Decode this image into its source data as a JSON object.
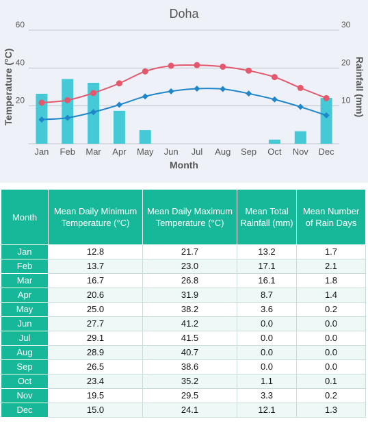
{
  "chart_data": {
    "type": "bar+line",
    "title": "Doha",
    "xlabel": "Month",
    "ylabel_left": "Temperature (°C)",
    "ylabel_right": "Rainfall (mm)",
    "categories": [
      "Jan",
      "Feb",
      "Mar",
      "Apr",
      "May",
      "Jun",
      "Jul",
      "Aug",
      "Sep",
      "Oct",
      "Nov",
      "Dec"
    ],
    "left_ticks": [
      "20",
      "40",
      "60"
    ],
    "right_ticks": [
      "10",
      "20",
      "30"
    ],
    "ylim_left": [
      0,
      60
    ],
    "ylim_right": [
      0,
      30
    ],
    "series": [
      {
        "kind": "bar",
        "axis": "right",
        "values": [
          13.2,
          17.1,
          16.1,
          8.7,
          3.6,
          0.0,
          0.0,
          0.0,
          0.0,
          1.1,
          3.3,
          12.1
        ],
        "color": "#45c9d6"
      },
      {
        "kind": "line",
        "axis": "left",
        "values": [
          21.7,
          23.0,
          26.8,
          31.9,
          38.2,
          41.2,
          41.5,
          40.7,
          38.6,
          35.2,
          29.5,
          24.1
        ],
        "color": "#e3586d"
      },
      {
        "kind": "line",
        "axis": "left",
        "values": [
          12.8,
          13.7,
          16.7,
          20.6,
          25.0,
          27.7,
          29.1,
          28.9,
          26.5,
          23.4,
          19.5,
          15.0
        ],
        "color": "#1f86c9"
      }
    ],
    "grid": true
  },
  "table": {
    "headers": [
      "Month",
      "Mean Daily Minimum Temperature (°C)",
      "Mean Daily Maximum Temperature (°C)",
      "Mean Total Rainfall (mm)",
      "Mean Number of Rain Days"
    ],
    "rows": [
      [
        "Jan",
        "12.8",
        "21.7",
        "13.2",
        "1.7"
      ],
      [
        "Feb",
        "13.7",
        "23.0",
        "17.1",
        "2.1"
      ],
      [
        "Mar",
        "16.7",
        "26.8",
        "16.1",
        "1.8"
      ],
      [
        "Apr",
        "20.6",
        "31.9",
        "8.7",
        "1.4"
      ],
      [
        "May",
        "25.0",
        "38.2",
        "3.6",
        "0.2"
      ],
      [
        "Jun",
        "27.7",
        "41.2",
        "0.0",
        "0.0"
      ],
      [
        "Jul",
        "29.1",
        "41.5",
        "0.0",
        "0.0"
      ],
      [
        "Aug",
        "28.9",
        "40.7",
        "0.0",
        "0.0"
      ],
      [
        "Sep",
        "26.5",
        "38.6",
        "0.0",
        "0.0"
      ],
      [
        "Oct",
        "23.4",
        "35.2",
        "1.1",
        "0.1"
      ],
      [
        "Nov",
        "19.5",
        "29.5",
        "3.3",
        "0.2"
      ],
      [
        "Dec",
        "15.0",
        "24.1",
        "12.1",
        "1.3"
      ]
    ]
  }
}
